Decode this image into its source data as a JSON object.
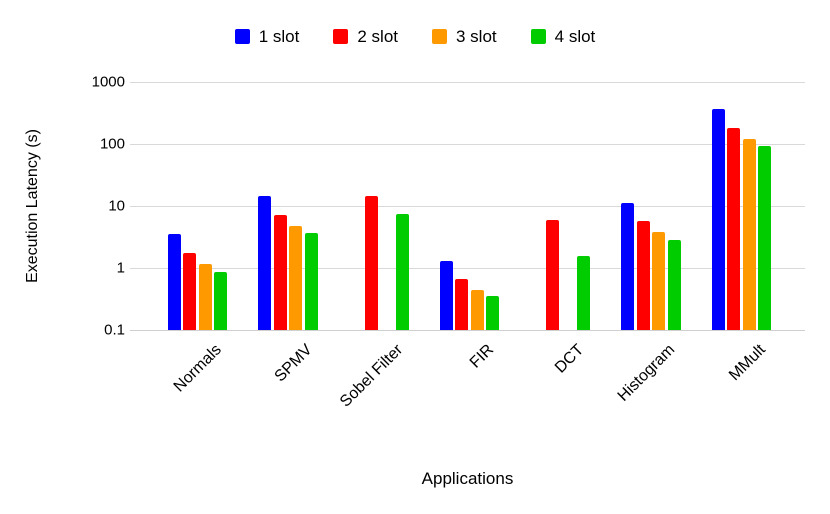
{
  "chart_data": {
    "type": "bar",
    "y_scale": "log",
    "title": "",
    "xlabel": "Applications",
    "ylabel": "Execution Latency (s)",
    "ylim": [
      0.1,
      1000
    ],
    "yticks": [
      1000,
      100,
      10,
      1,
      0.1
    ],
    "ytick_labels": [
      "1000",
      "100",
      "10",
      "1",
      "0.1"
    ],
    "grid": true,
    "legend_position": "top",
    "categories": [
      "Normals",
      "SPMV",
      "Sobel Filter",
      "FIR",
      "DCT",
      "Histogram",
      "MMult"
    ],
    "series": [
      {
        "name": "1 slot",
        "color": "#0000ff",
        "values": [
          3.6,
          14.5,
          null,
          1.3,
          null,
          11.2,
          370
        ]
      },
      {
        "name": "2 slot",
        "color": "#ff0000",
        "values": [
          1.75,
          7.3,
          14.3,
          0.66,
          6.0,
          5.8,
          180
        ]
      },
      {
        "name": "3 slot",
        "color": "#ff9900",
        "values": [
          1.15,
          4.8,
          null,
          0.45,
          null,
          3.85,
          122
        ]
      },
      {
        "name": "4 slot",
        "color": "#00cc00",
        "values": [
          0.87,
          3.7,
          7.5,
          0.35,
          1.57,
          2.8,
          92
        ]
      }
    ],
    "gridline_color": "#d9d9d9"
  }
}
